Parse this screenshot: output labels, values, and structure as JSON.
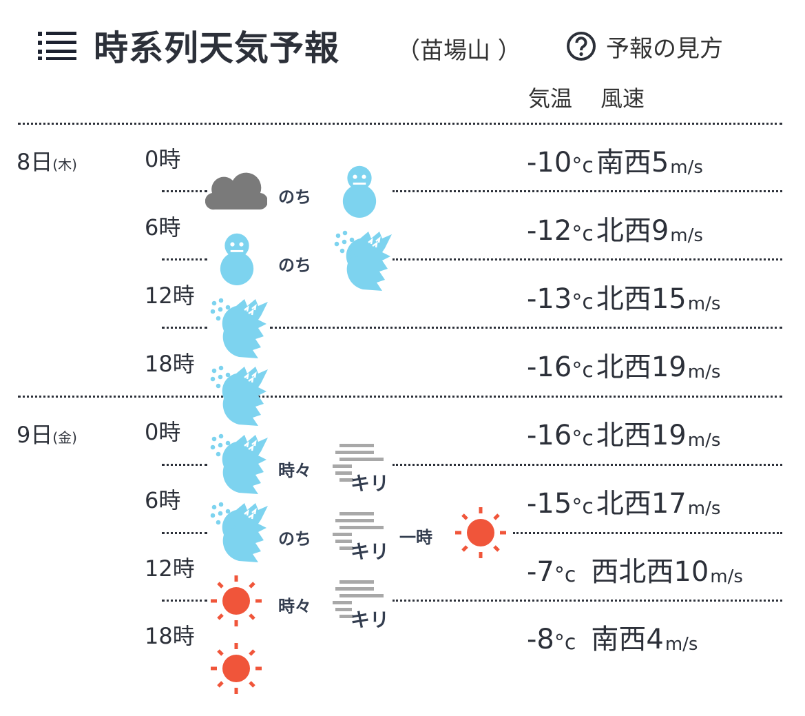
{
  "header": {
    "menu_icon": "list-menu-icon",
    "title": "時系列天気予報",
    "location": "（苗場山 ）",
    "help_icon": "question-circle-icon",
    "help_label": "予報の見方"
  },
  "columns": {
    "temp_label": "気温",
    "wind_label": "風速"
  },
  "colors": {
    "snow": "#7dd3ef",
    "sun": "#f0553a",
    "cloud": "#7a7a7a",
    "fog": "#a8a8a8",
    "text": "#2c3039"
  },
  "days": [
    {
      "date": "8日",
      "dow": "(木)"
    },
    {
      "date": "9日",
      "dow": "(金)"
    }
  ],
  "hours": [
    "0時",
    "6時",
    "12時",
    "18時",
    "0時",
    "6時",
    "12時",
    "18時"
  ],
  "rows": [
    {
      "temp": "-10",
      "temp_unit": "°c",
      "wind_dir": "南西",
      "wind_speed": "5",
      "wind_unit": "m/s"
    },
    {
      "temp": "-12",
      "temp_unit": "°c",
      "wind_dir": "北西",
      "wind_speed": "9",
      "wind_unit": "m/s"
    },
    {
      "temp": "-13",
      "temp_unit": "°c",
      "wind_dir": "北西",
      "wind_speed": "15",
      "wind_unit": "m/s"
    },
    {
      "temp": "-16",
      "temp_unit": "°c",
      "wind_dir": "北西",
      "wind_speed": "19",
      "wind_unit": "m/s"
    },
    {
      "temp": "-16",
      "temp_unit": "°c",
      "wind_dir": "北西",
      "wind_speed": "19",
      "wind_unit": "m/s"
    },
    {
      "temp": "-15",
      "temp_unit": "°c",
      "wind_dir": "北西",
      "wind_speed": "17",
      "wind_unit": "m/s"
    },
    {
      "temp": "-7",
      "temp_unit": "°c",
      "wind_dir": "西北西",
      "wind_speed": "10",
      "wind_unit": "m/s"
    },
    {
      "temp": "-8",
      "temp_unit": "°c",
      "wind_dir": "南西",
      "wind_speed": "4",
      "wind_unit": "m/s"
    }
  ],
  "weather": [
    {
      "icons": [
        "cloud-icon",
        "snowman-icon"
      ],
      "connectors": [
        "のち"
      ]
    },
    {
      "icons": [
        "snowman-icon",
        "snowstorm-icon"
      ],
      "connectors": [
        "のち"
      ]
    },
    {
      "icons": [
        "snowstorm-icon"
      ],
      "connectors": []
    },
    {
      "icons": [
        "snowstorm-icon"
      ],
      "connectors": []
    },
    {
      "icons": [
        "snowstorm-icon",
        "fog-icon"
      ],
      "connectors": [
        "時々"
      ]
    },
    {
      "icons": [
        "snowstorm-icon",
        "fog-icon",
        "sun-icon"
      ],
      "connectors": [
        "のち",
        "一時"
      ]
    },
    {
      "icons": [
        "sun-icon",
        "fog-icon"
      ],
      "connectors": [
        "時々"
      ]
    },
    {
      "icons": [
        "sun-icon"
      ],
      "connectors": []
    }
  ],
  "fog_label": "キリ"
}
